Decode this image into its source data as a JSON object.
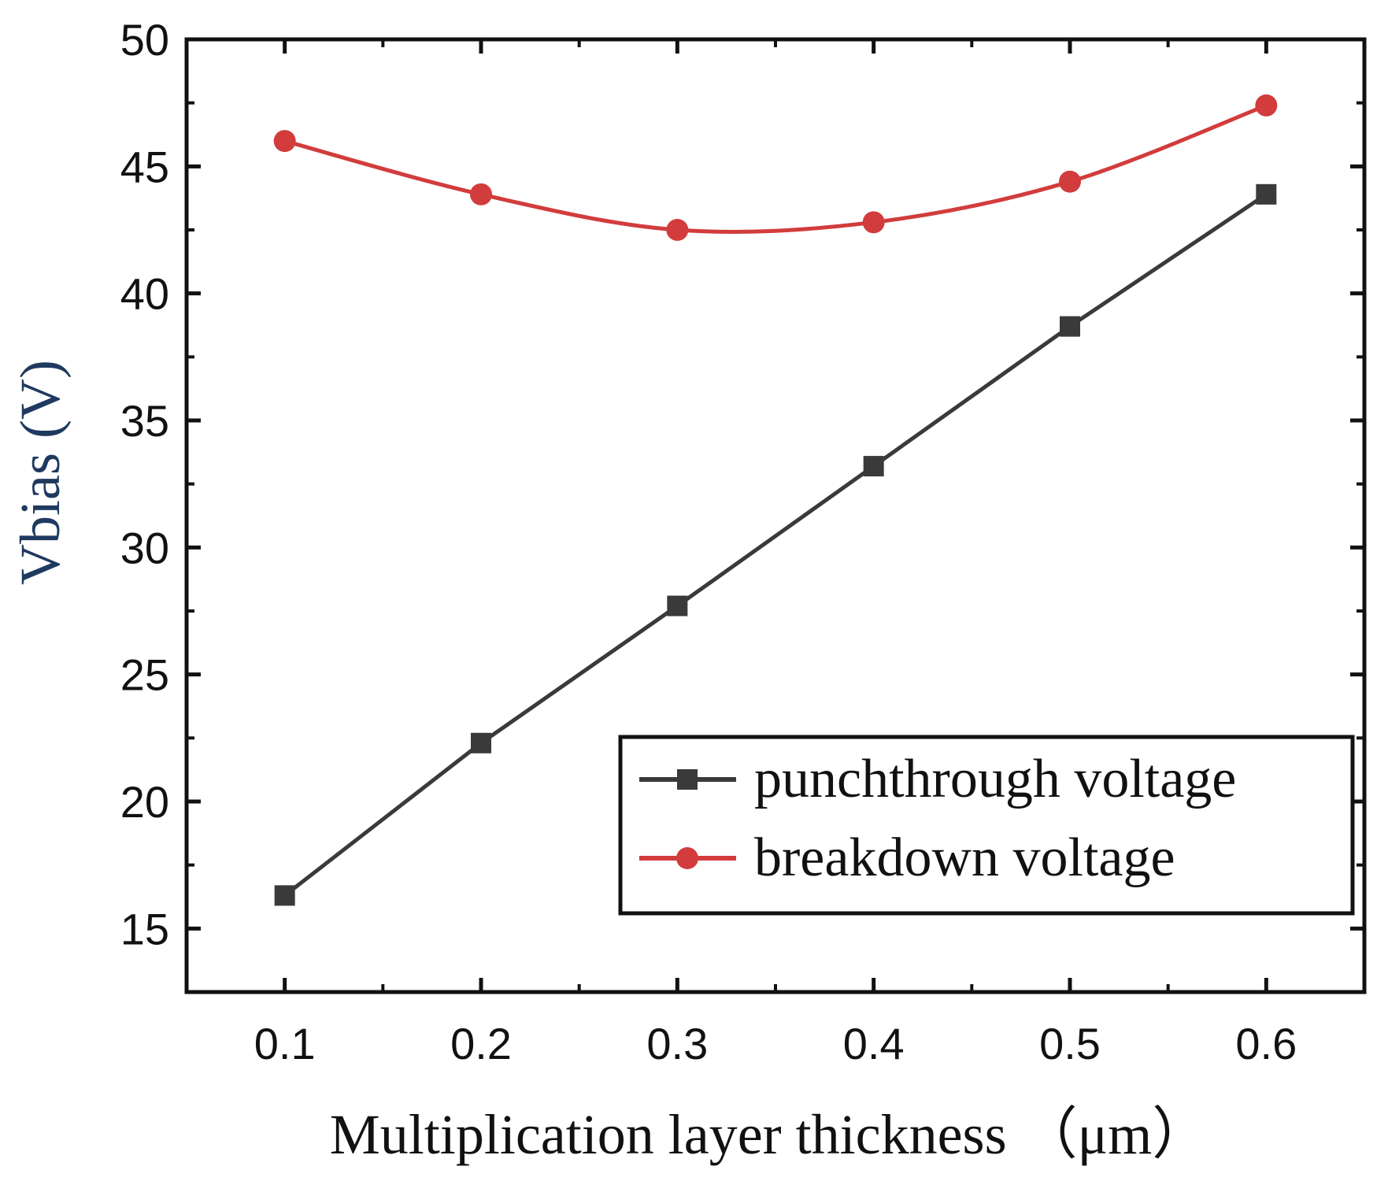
{
  "chart_data": {
    "type": "line",
    "title": "",
    "xlabel": "Multiplication layer thickness  （μm）",
    "ylabel": "Vbias (V)",
    "x": [
      0.1,
      0.2,
      0.3,
      0.4,
      0.5,
      0.6
    ],
    "xlim": [
      0.05,
      0.65
    ],
    "ylim": [
      12.5,
      50
    ],
    "xticks": [
      0.1,
      0.2,
      0.3,
      0.4,
      0.5,
      0.6
    ],
    "xtick_labels": [
      "0.1",
      "0.2",
      "0.3",
      "0.4",
      "0.5",
      "0.6"
    ],
    "yticks": [
      15,
      20,
      25,
      30,
      35,
      40,
      45,
      50
    ],
    "ytick_labels": [
      "15",
      "20",
      "25",
      "30",
      "35",
      "40",
      "45",
      "50"
    ],
    "grid": false,
    "legend_position": "lower-right",
    "series": [
      {
        "name": "punchthrough voltage",
        "marker": "square",
        "color": "#3a3a3a",
        "values": [
          16.3,
          22.3,
          27.7,
          33.2,
          38.7,
          43.9
        ]
      },
      {
        "name": "breakdown voltage",
        "marker": "circle",
        "color": "#d23c3c",
        "values": [
          46.0,
          43.9,
          42.5,
          42.8,
          44.4,
          47.4
        ]
      }
    ],
    "colors": {
      "axis": "#111111",
      "ylabel": "#1f3a5f",
      "xlabel": "#111111"
    }
  }
}
